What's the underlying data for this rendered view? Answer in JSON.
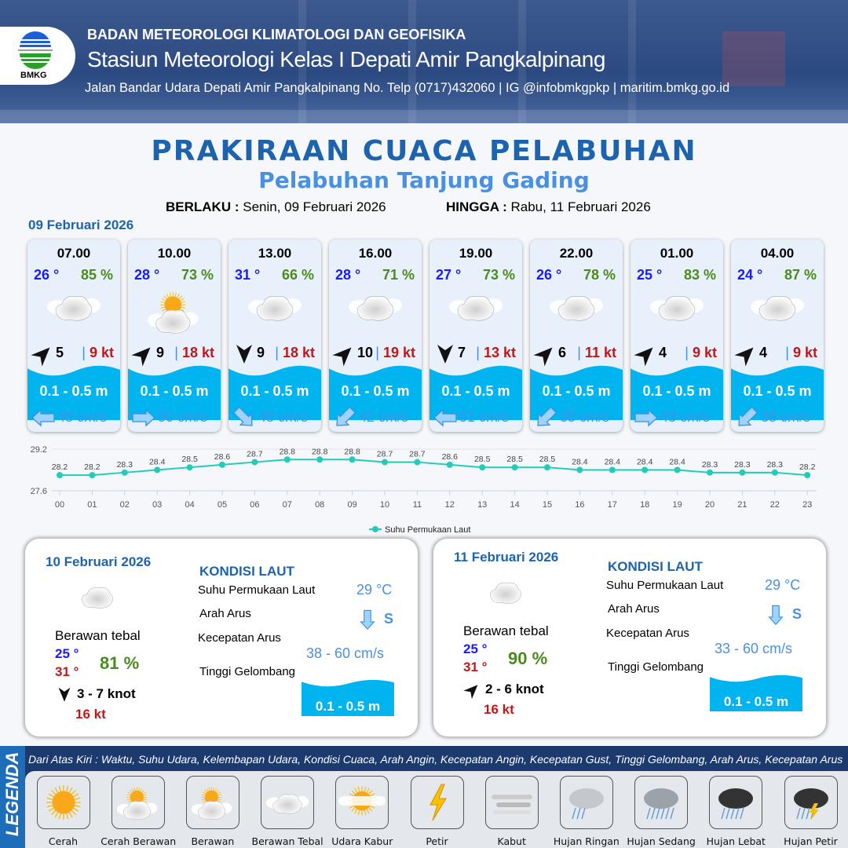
{
  "header": {
    "org": "BADAN METEOROLOGI KLIMATOLOGI DAN GEOFISIKA",
    "station": "Stasiun Meteorologi Kelas I Depati Amir Pangkalpinang",
    "address": "Jalan Bandar Udara Depati Amir Pangkalpinang No. Telp (0717)432060 | IG @infobmkgpkp | maritim.bmkg.go.id",
    "logo_text": "BMKG"
  },
  "title": "PRAKIRAAN CUACA PELABUHAN",
  "subtitle": "Pelabuhan Tanjung Gading",
  "validity": {
    "from_label": "BERLAKU :",
    "from": "Senin, 09 Februari 2026",
    "to_label": "HINGGA :",
    "to": "Rabu, 11 Februari 2026"
  },
  "day1_date": "09 Februari 2026",
  "colors": {
    "temp": "#1a1aff",
    "humidity": "#4b8b1d",
    "gust": "#c01818",
    "wave": "#00b4f0",
    "current": "#4a90e2",
    "chart_line": "#22ccb8",
    "title": "#1d63ad"
  },
  "forecast": [
    {
      "time": "07.00",
      "temp": "26 °",
      "hum": "85 %",
      "weather": "berawan-tebal",
      "wind_dir": "northeast",
      "wind": "5",
      "gust": "9 kt",
      "wave": "0.1 - 0.5 m",
      "current_dir": "west",
      "current": "48 cm/s"
    },
    {
      "time": "10.00",
      "temp": "28 °",
      "hum": "73 %",
      "weather": "cerah-berawan",
      "wind_dir": "northeast",
      "wind": "9",
      "gust": "18 kt",
      "wave": "0.1 - 0.5 m",
      "current_dir": "east",
      "current": "50 cm/s"
    },
    {
      "time": "13.00",
      "temp": "31 °",
      "hum": "66 %",
      "weather": "berawan-tebal",
      "wind_dir": "south",
      "wind": "9",
      "gust": "18 kt",
      "wave": "0.1 - 0.5 m",
      "current_dir": "southeast",
      "current": "48 cm/s"
    },
    {
      "time": "16.00",
      "temp": "28 °",
      "hum": "71 %",
      "weather": "berawan-tebal",
      "wind_dir": "northeast",
      "wind": "10",
      "gust": "19 kt",
      "wave": "0.1 - 0.5 m",
      "current_dir": "southwest",
      "current": "42 cm/s"
    },
    {
      "time": "19.00",
      "temp": "27 °",
      "hum": "73 %",
      "weather": "berawan-tebal",
      "wind_dir": "south",
      "wind": "7",
      "gust": "13 kt",
      "wave": "0.1 - 0.5 m",
      "current_dir": "west",
      "current": "51 cm/s"
    },
    {
      "time": "22.00",
      "temp": "26 °",
      "hum": "78 %",
      "weather": "berawan-tebal",
      "wind_dir": "northeast",
      "wind": "6",
      "gust": "11 kt",
      "wave": "0.1 - 0.5 m",
      "current_dir": "southwest",
      "current": "35 cm/s"
    },
    {
      "time": "01.00",
      "temp": "25 °",
      "hum": "83 %",
      "weather": "berawan-tebal",
      "wind_dir": "northeast",
      "wind": "4",
      "gust": "9 kt",
      "wave": "0.1 - 0.5 m",
      "current_dir": "east",
      "current": "43 cm/s"
    },
    {
      "time": "04.00",
      "temp": "24 °",
      "hum": "87 %",
      "weather": "berawan-tebal",
      "wind_dir": "northeast",
      "wind": "4",
      "gust": "9 kt",
      "wave": "0.1 - 0.5 m",
      "current_dir": "southwest",
      "current": "38 cm/s"
    }
  ],
  "chart_data": {
    "type": "line",
    "x": [
      "00",
      "01",
      "02",
      "03",
      "04",
      "05",
      "06",
      "07",
      "08",
      "09",
      "10",
      "11",
      "12",
      "13",
      "14",
      "15",
      "16",
      "17",
      "18",
      "19",
      "20",
      "21",
      "22",
      "23"
    ],
    "series": [
      {
        "name": "Suhu Permukaan Laut",
        "values": [
          28.2,
          28.2,
          28.3,
          28.4,
          28.5,
          28.6,
          28.7,
          28.8,
          28.8,
          28.8,
          28.7,
          28.7,
          28.6,
          28.5,
          28.5,
          28.5,
          28.4,
          28.4,
          28.4,
          28.4,
          28.3,
          28.3,
          28.3,
          28.2
        ]
      }
    ],
    "ylim": [
      27.6,
      29.2
    ],
    "yticks": [
      "27.6",
      "29.2"
    ],
    "legend": "bottom",
    "grid": true
  },
  "days": [
    {
      "date": "10 Februari 2026",
      "weather": "Berawan tebal",
      "tmin": "25 °",
      "tmax": "31 °",
      "hum": "81 %",
      "wind_dir": "south",
      "wind": "3  - 7 knot",
      "gust": "16 kt",
      "kondisi": "KONDISI LAUT",
      "sst_label": "Suhu Permukaan Laut",
      "sst": "29 °C",
      "arus_label": "Arah Arus",
      "arus": "S",
      "kec_label": "Kecepatan Arus",
      "kec": "38  - 60 cm/s",
      "tg_label": "Tinggi Gelombang",
      "tg": "0.1 - 0.5 m"
    },
    {
      "date": "11 Februari 2026",
      "weather": "Berawan tebal",
      "tmin": "25 °",
      "tmax": "31 °",
      "hum": "90 %",
      "wind_dir": "northeast",
      "wind": "2  - 6 knot",
      "gust": "16 kt",
      "kondisi": "KONDISI LAUT",
      "sst_label": "Suhu Permukaan Laut",
      "sst": "29 °C",
      "arus_label": "Arah Arus",
      "arus": "S",
      "kec_label": "Kecepatan Arus",
      "kec": "33  - 60 cm/s",
      "tg_label": "Tinggi Gelombang",
      "tg": "0.1 - 0.5 m"
    }
  ],
  "legend": {
    "title": "LEGENDA",
    "note": "Dari Atas Kiri : Waktu, Suhu Udara, Kelembapan Udara, Kondisi Cuaca, Arah Angin, Kecepatan Angin, Kecepatan Gust, Tinggi Gelombang, Arah Arus, Kecepatan Arus",
    "items": [
      {
        "label": "Cerah",
        "icon": "sun"
      },
      {
        "label": "Cerah Berawan",
        "icon": "sun-cloud"
      },
      {
        "label": "Berawan",
        "icon": "clouds-sun"
      },
      {
        "label": "Berawan Tebal",
        "icon": "cloud"
      },
      {
        "label": "Udara Kabur",
        "icon": "haze"
      },
      {
        "label": "Petir",
        "icon": "lightning"
      },
      {
        "label": "Kabut",
        "icon": "fog"
      },
      {
        "label": "Hujan Ringan",
        "icon": "light-rain"
      },
      {
        "label": "Hujan Sedang",
        "icon": "rain"
      },
      {
        "label": "Hujan Lebat",
        "icon": "heavy-rain"
      },
      {
        "label": "Hujan Petir",
        "icon": "thunderstorm"
      }
    ]
  }
}
